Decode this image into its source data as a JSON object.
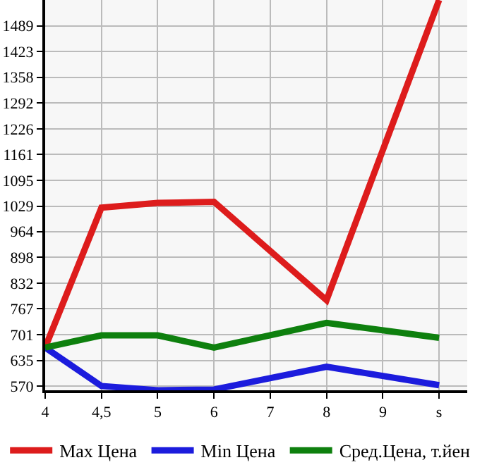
{
  "chart_data": {
    "type": "line",
    "categories": [
      "4",
      "4,5",
      "5",
      "6",
      "7",
      "8",
      "9",
      "s"
    ],
    "series": [
      {
        "name": "Max Цена",
        "color": "#dd1c1c",
        "values": [
          668,
          1025,
          1037,
          1040,
          null,
          789,
          null,
          1555
        ]
      },
      {
        "name": "Min Цена",
        "color": "#1c1cdd",
        "values": [
          668,
          570,
          559,
          561,
          null,
          619,
          null,
          572
        ]
      },
      {
        "name": "Сред.Цена, т.йен",
        "color": "#0e800e",
        "values": [
          668,
          699,
          699,
          668,
          null,
          731,
          null,
          693
        ]
      }
    ],
    "ylim": [
      559,
      1555
    ],
    "yticks": [
      570,
      635,
      701,
      767,
      832,
      898,
      964,
      1029,
      1095,
      1161,
      1226,
      1292,
      1358,
      1423,
      1489
    ],
    "grid": true,
    "legend": "bottom",
    "marker": "none",
    "line_style": "solid"
  }
}
